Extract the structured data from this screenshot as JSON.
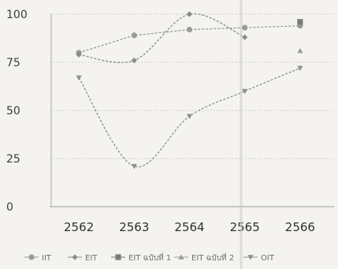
{
  "chart_data": {
    "type": "line",
    "categories": [
      "2562",
      "2563",
      "2564",
      "2565",
      "2566"
    ],
    "yticks": [
      0,
      25,
      50,
      75,
      100
    ],
    "ylim": [
      0,
      100
    ],
    "grid": true,
    "legend_position": "bottom",
    "series": [
      {
        "name": "IIT",
        "marker": "circle",
        "color": "#9a9a9a",
        "smooth": false,
        "values": [
          80,
          89,
          92,
          93,
          94
        ]
      },
      {
        "name": "EIT",
        "marker": "diamond",
        "color": "#8a8a8a",
        "smooth": true,
        "values": [
          79,
          76,
          100,
          88,
          null
        ]
      },
      {
        "name": "EIT ฉบับที่ 1",
        "marker": "square",
        "color": "#7a7a7a",
        "smooth": false,
        "values": [
          null,
          null,
          null,
          null,
          96
        ]
      },
      {
        "name": "EIT ฉบับที่ 2",
        "marker": "triangle",
        "color": "#9c9c9c",
        "smooth": false,
        "values": [
          null,
          null,
          null,
          null,
          81
        ]
      },
      {
        "name": "OIT",
        "marker": "triangle-down",
        "color": "#8f8f8f",
        "smooth": true,
        "values": [
          67,
          21,
          47,
          60,
          72
        ]
      }
    ]
  }
}
